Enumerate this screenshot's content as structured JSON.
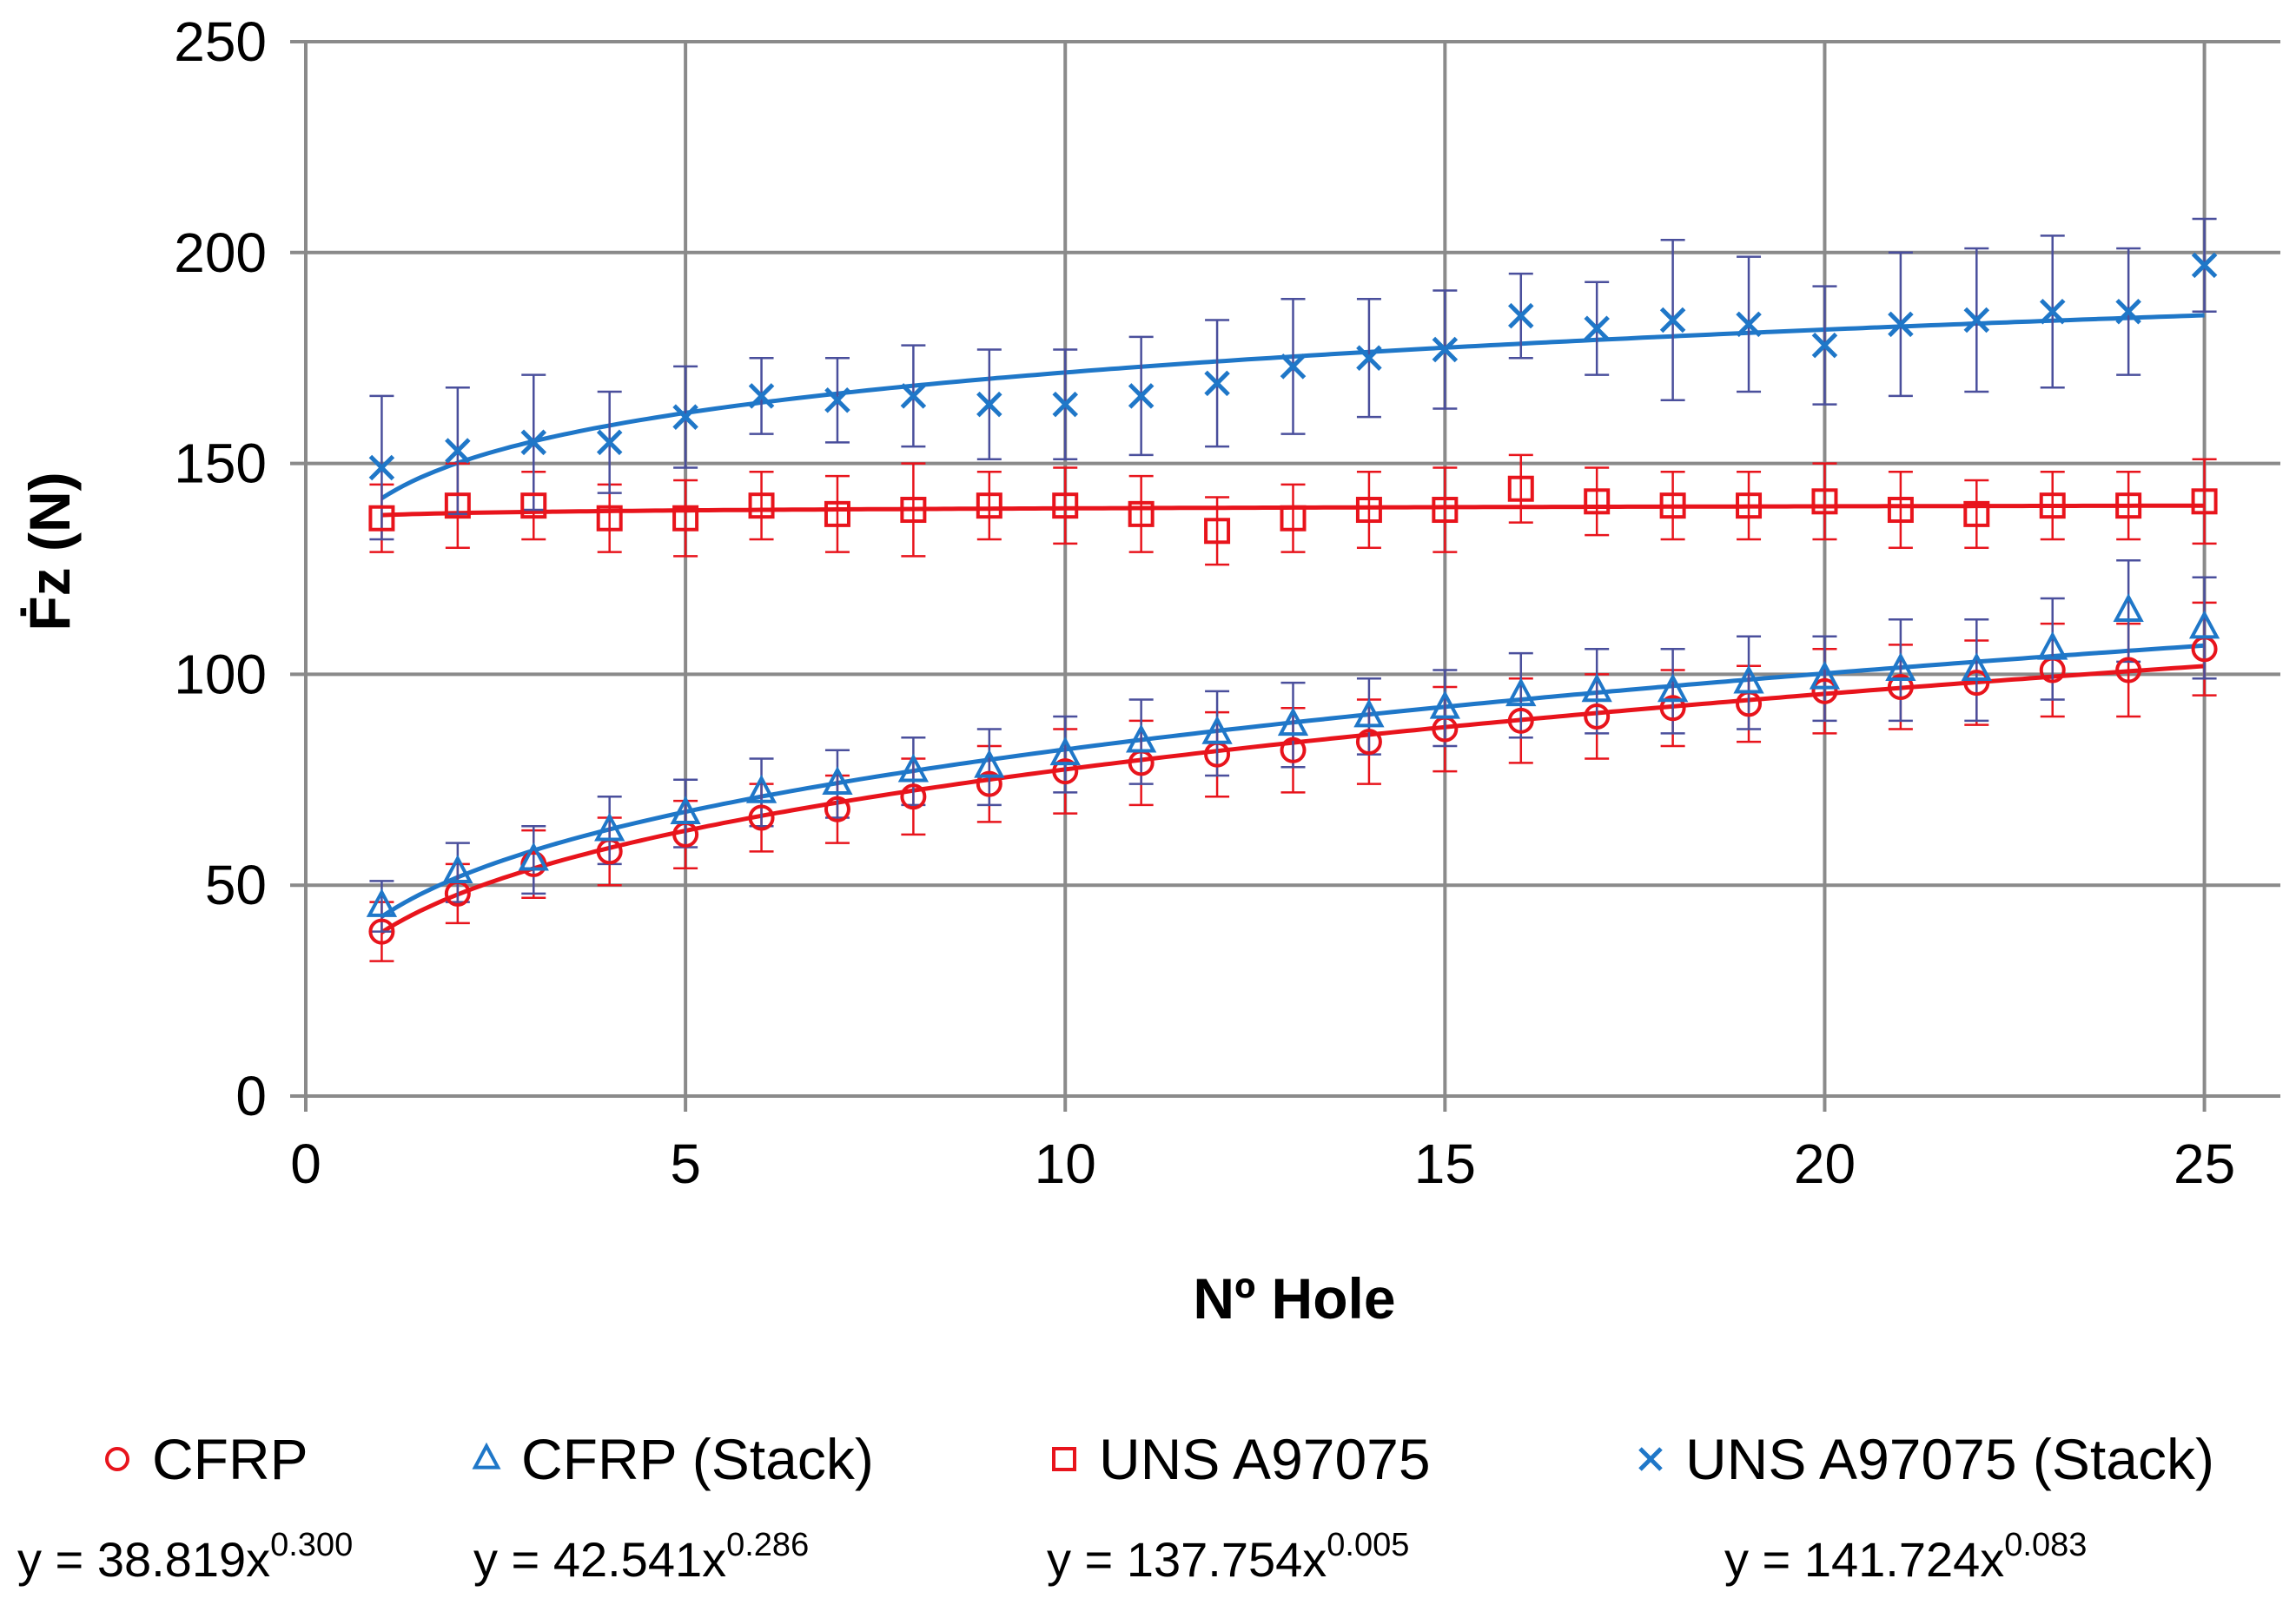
{
  "chart_data": {
    "type": "scatter",
    "title": "",
    "xlabel": "Nº Hole",
    "ylabel": "Ḟz (N)",
    "xlim": [
      0,
      26
    ],
    "ylim": [
      0,
      250
    ],
    "x_ticks": [
      0,
      5,
      10,
      15,
      20,
      25
    ],
    "y_ticks": [
      0,
      50,
      100,
      150,
      200,
      250
    ],
    "x_tick_labels": [
      "0",
      "5",
      "10",
      "15",
      "20",
      "25"
    ],
    "y_tick_labels": [
      "0",
      "50",
      "100",
      "150",
      "200",
      "250"
    ],
    "grid": true,
    "legend_position": "bottom",
    "x": [
      1,
      2,
      3,
      4,
      5,
      6,
      7,
      8,
      9,
      10,
      11,
      12,
      13,
      14,
      15,
      16,
      17,
      18,
      19,
      20,
      21,
      22,
      23,
      24,
      25
    ],
    "series": [
      {
        "name": "CFRP",
        "marker": "circle",
        "color": "#e8141c",
        "errorbar_color": "#e8141c",
        "values": [
          39,
          48,
          55,
          58,
          62,
          66,
          68,
          71,
          74,
          77,
          79,
          81,
          82,
          84,
          87,
          89,
          90,
          92,
          93,
          96,
          97,
          98,
          101,
          101,
          106
        ],
        "error": [
          7,
          7,
          8,
          8,
          8,
          8,
          8,
          9,
          9,
          10,
          10,
          10,
          10,
          10,
          10,
          10,
          10,
          9,
          9,
          10,
          10,
          10,
          11,
          11,
          11
        ],
        "fit": {
          "a": 38.819,
          "b": 0.3
        },
        "fit_color": "#e8141c",
        "equation": {
          "prefix": "y = 38.819x",
          "exponent": "0.300"
        }
      },
      {
        "name": "CFRP (Stack)",
        "marker": "triangle",
        "color": "#1f77c8",
        "errorbar_color": "#4a4f9c",
        "values": [
          45,
          53,
          56,
          63,
          67,
          72,
          74,
          77,
          78,
          81,
          84,
          86,
          88,
          90,
          92,
          95,
          96,
          96,
          98,
          99,
          101,
          101,
          106,
          115,
          111
        ],
        "error": [
          6,
          7,
          8,
          8,
          8,
          8,
          8,
          8,
          9,
          9,
          10,
          10,
          10,
          9,
          9,
          10,
          10,
          10,
          11,
          10,
          12,
          12,
          12,
          12,
          12
        ],
        "fit": {
          "a": 42.541,
          "b": 0.286
        },
        "fit_color": "#1f77c8",
        "equation": {
          "prefix": "y = 42.541x",
          "exponent": "0.286"
        }
      },
      {
        "name": "UNS A97075",
        "marker": "square",
        "color": "#e8141c",
        "errorbar_color": "#e8141c",
        "values": [
          137,
          140,
          140,
          137,
          137,
          140,
          138,
          139,
          140,
          140,
          138,
          134,
          137,
          139,
          139,
          144,
          141,
          140,
          140,
          141,
          139,
          138,
          140,
          140,
          141
        ],
        "error": [
          8,
          10,
          8,
          8,
          9,
          8,
          9,
          11,
          8,
          9,
          9,
          8,
          8,
          9,
          10,
          8,
          8,
          8,
          8,
          9,
          9,
          8,
          8,
          8,
          10
        ],
        "fit": {
          "a": 137.754,
          "b": 0.005
        },
        "fit_color": "#e8141c",
        "equation": {
          "prefix": "y = 137.754x",
          "exponent": "0.005"
        }
      },
      {
        "name": "UNS A97075 (Stack)",
        "marker": "x",
        "color": "#1f77c8",
        "errorbar_color": "#4a4f9c",
        "values": [
          149,
          153,
          155,
          155,
          161,
          166,
          165,
          166,
          164,
          164,
          166,
          169,
          173,
          175,
          177,
          185,
          182,
          184,
          183,
          178,
          183,
          184,
          186,
          186,
          197
        ],
        "error": [
          17,
          15,
          16,
          12,
          12,
          9,
          10,
          12,
          13,
          13,
          14,
          15,
          16,
          14,
          14,
          10,
          11,
          19,
          16,
          14,
          17,
          17,
          18,
          15,
          11
        ],
        "fit": {
          "a": 141.724,
          "b": 0.083
        },
        "fit_color": "#1f77c8",
        "equation": {
          "prefix": "y = 141.724x",
          "exponent": "0.083"
        }
      }
    ]
  }
}
